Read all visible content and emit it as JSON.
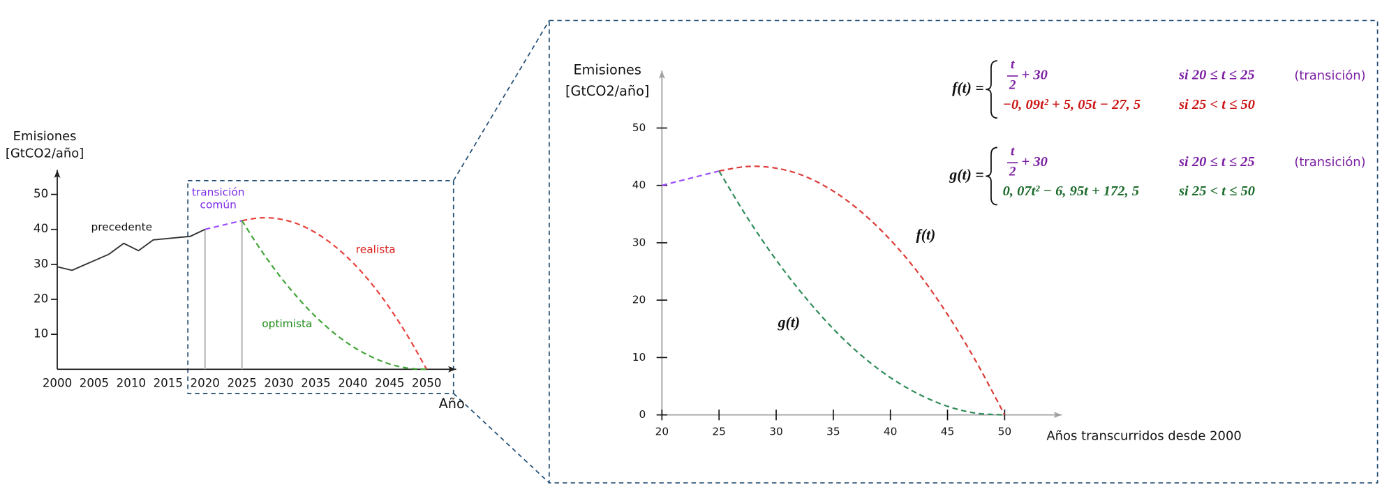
{
  "chart_data": [
    {
      "type": "line",
      "y_label": "Emisiones [GtCO2/año]",
      "x_label": "Año",
      "x": [
        2000,
        2002,
        2007,
        2009,
        2011,
        2013,
        2018,
        2020,
        2022.5,
        2025,
        2027.5,
        2030,
        2032.5,
        2035,
        2037.5,
        2040,
        2042.5,
        2045,
        2047.5,
        2050
      ],
      "xlim": [
        2000,
        2054
      ],
      "ylim": [
        0,
        57
      ],
      "xticks": [
        2000,
        2005,
        2010,
        2015,
        2020,
        2025,
        2030,
        2035,
        2040,
        2045,
        2050
      ],
      "yticks": [
        10,
        20,
        30,
        40,
        50
      ],
      "vlines": [
        2020,
        2025
      ],
      "series": [
        {
          "name": "precedente",
          "color": "#333333",
          "dashed": false,
          "label_color": "#111111",
          "values": [
            29.3,
            28.3,
            32.9,
            36,
            33.9,
            37,
            38,
            40,
            null,
            null,
            null,
            null,
            null,
            null,
            null,
            null,
            null,
            null,
            null,
            null
          ]
        },
        {
          "name": "transición común",
          "color": "#9b4dff",
          "dashed": true,
          "label_color": "#7d2ae8",
          "values": [
            null,
            null,
            null,
            null,
            null,
            null,
            null,
            40,
            41.25,
            42.5,
            null,
            null,
            null,
            null,
            null,
            null,
            null,
            null,
            null,
            null
          ]
        },
        {
          "name": "realista",
          "color": "#e8403a",
          "dashed": true,
          "label_color": "#d8201c",
          "values": [
            null,
            null,
            null,
            null,
            null,
            null,
            null,
            null,
            null,
            42.5,
            43.3,
            43,
            41.6,
            39,
            35.3,
            30.5,
            24.6,
            17.5,
            9.3,
            0
          ]
        },
        {
          "name": "optimista",
          "color": "#3fa535",
          "dashed": true,
          "label_color": "#1f8a1a",
          "values": [
            null,
            null,
            null,
            null,
            null,
            null,
            null,
            null,
            null,
            42.5,
            34.3,
            27,
            20.6,
            15,
            10.3,
            6.5,
            3.6,
            1.5,
            0.3,
            0
          ]
        }
      ]
    },
    {
      "type": "line",
      "y_label": "Emisiones [GtCO2/año]",
      "x_label": "Años transcurridos desde 2000",
      "x": [
        20,
        22.5,
        25,
        27.5,
        30,
        32.5,
        35,
        37.5,
        40,
        42.5,
        45,
        47.5,
        50
      ],
      "xlim": [
        20,
        55
      ],
      "ylim": [
        0,
        60
      ],
      "xticks": [
        20,
        25,
        30,
        35,
        40,
        45,
        50
      ],
      "yticks": [
        0,
        10,
        20,
        30,
        40,
        50
      ],
      "series": [
        {
          "color": "#9b4dff",
          "dashed": true,
          "values": [
            40,
            41.25,
            42.5,
            null,
            null,
            null,
            null,
            null,
            null,
            null,
            null,
            null,
            null
          ]
        },
        {
          "name": "f(t)",
          "color": "#dd3a36",
          "dashed": true,
          "values": [
            null,
            null,
            42.5,
            43.3,
            43,
            41.6,
            39,
            35.3,
            30.5,
            24.6,
            17.5,
            9.3,
            0
          ]
        },
        {
          "name": "g(t)",
          "color": "#2e8b57",
          "dashed": true,
          "values": [
            null,
            null,
            42.5,
            34.3,
            27,
            20.6,
            15,
            10.3,
            6.5,
            3.6,
            1.5,
            0.3,
            0
          ]
        }
      ],
      "equations": [
        {
          "lhs": "f(t) =",
          "cases": [
            {
              "num": "t",
              "den": "2",
              "expr": "+ 30",
              "cond": "si  20 ≤ t ≤ 25",
              "note": "(transición)",
              "color": "#7b1fa2"
            },
            {
              "expr": "−0, 09t² + 5, 05t − 27, 5",
              "cond": "si  25 < t ≤ 50",
              "color": "#cc1414"
            }
          ]
        },
        {
          "lhs": "g(t) =",
          "cases": [
            {
              "num": "t",
              "den": "2",
              "expr": "+ 30",
              "cond": "si  20 ≤ t ≤ 25",
              "note": "(transición)",
              "color": "#7b1fa2"
            },
            {
              "expr": "0, 07t² − 6, 95t + 172, 5",
              "cond": "si  25 < t ≤ 50",
              "color": "#1b6b2b"
            }
          ]
        }
      ]
    }
  ]
}
